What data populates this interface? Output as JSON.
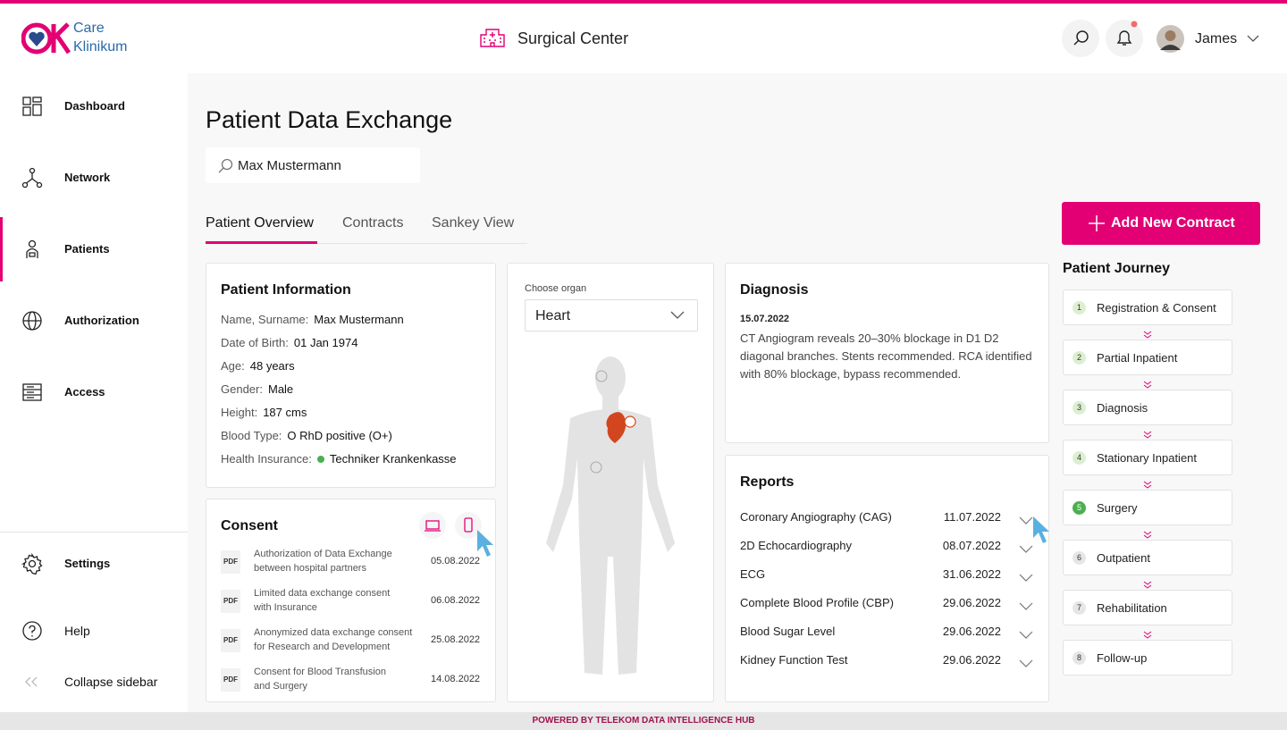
{
  "header": {
    "logo": {
      "line1": "Care",
      "line2": "Klinikum"
    },
    "facility": "Surgical Center",
    "user": "James"
  },
  "sidebar": {
    "nav": [
      "Dashboard",
      "Network",
      "Patients",
      "Authorization",
      "Access"
    ],
    "bottom": [
      "Settings",
      "Help",
      "Collapse sidebar"
    ]
  },
  "page": {
    "title": "Patient Data Exchange",
    "search": "Max Mustermann",
    "tabs": [
      "Patient Overview",
      "Contracts",
      "Sankey View"
    ],
    "add_button": "Add New Contract"
  },
  "patient_info": {
    "title": "Patient Information",
    "fields": [
      {
        "label": "Name, Surname:",
        "value": "Max Mustermann"
      },
      {
        "label": "Date of Birth:",
        "value": "01 Jan 1974"
      },
      {
        "label": "Age:",
        "value": "48 years"
      },
      {
        "label": "Gender:",
        "value": "Male"
      },
      {
        "label": "Height:",
        "value": "187 cms"
      },
      {
        "label": "Blood Type:",
        "value": "O RhD positive (O+)"
      },
      {
        "label": "Health Insurance:",
        "value": "Techniker Krankenkasse"
      }
    ]
  },
  "consent": {
    "title": "Consent",
    "documents": [
      {
        "icon": "PDF",
        "text": [
          "Authorization of Data Exchange",
          "between hospital partners"
        ],
        "date": "05.08.2022"
      },
      {
        "icon": "PDF",
        "text": [
          "Limited data exchange consent",
          "with Insurance"
        ],
        "date": "06.08.2022"
      },
      {
        "icon": "PDF",
        "text": [
          "Anonymized data exchange consent",
          "for Research and Development"
        ],
        "date": "25.08.2022"
      },
      {
        "icon": "PDF",
        "text": [
          "Consent for Blood Transfusion",
          "and Surgery"
        ],
        "date": "14.08.2022"
      }
    ]
  },
  "organ": {
    "label": "Choose organ",
    "selected": "Heart"
  },
  "diagnosis": {
    "title": "Diagnosis",
    "date": "15.07.2022",
    "text": "CT Angiogram reveals 20–30% blockage in D1 D2 diagonal branches. Stents recommended. RCA identified with 80% blockage, bypass recommended."
  },
  "reports": {
    "title": "Reports",
    "items": [
      {
        "name": "Coronary Angiography (CAG)",
        "date": "11.07.2022"
      },
      {
        "name": "2D Echocardiography",
        "date": "08.07.2022"
      },
      {
        "name": "ECG",
        "date": "31.06.2022"
      },
      {
        "name": "Complete Blood Profile (CBP)",
        "date": "29.06.2022"
      },
      {
        "name": "Blood Sugar Level",
        "date": "29.06.2022"
      },
      {
        "name": "Kidney Function Test",
        "date": "29.06.2022"
      }
    ]
  },
  "journey": {
    "title": "Patient Journey",
    "steps": [
      {
        "number": 1,
        "label": "Registration & Consent"
      },
      {
        "number": 2,
        "label": "Partial Inpatient"
      },
      {
        "number": 3,
        "label": "Diagnosis"
      },
      {
        "number": 4,
        "label": "Stationary Inpatient"
      },
      {
        "number": 5,
        "label": "Surgery"
      },
      {
        "number": 6,
        "label": "Outpatient"
      },
      {
        "number": 7,
        "label": "Rehabilitation"
      },
      {
        "number": 8,
        "label": "Follow-up"
      }
    ]
  },
  "footer": "POWERED BY TELEKOM DATA INTELLIGENCE HUB"
}
